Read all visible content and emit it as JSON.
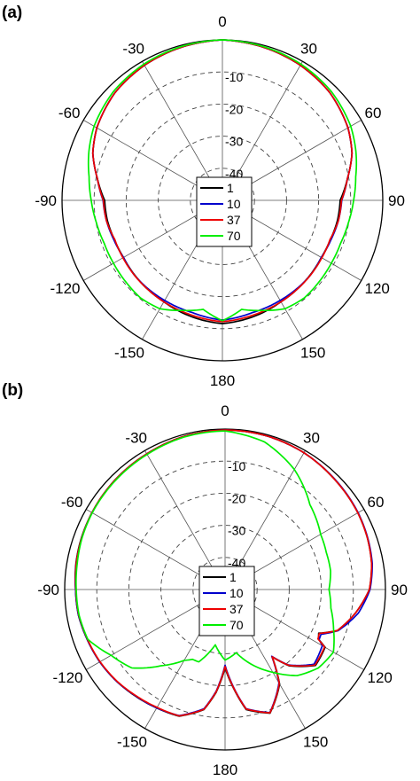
{
  "chart_data": [
    {
      "panel": "(a)",
      "type": "line",
      "coordinate_system": "polar",
      "theta_zero": "top",
      "theta_direction": "clockwise",
      "theta_ticks": [
        {
          "angle": 0,
          "label": "0"
        },
        {
          "angle": 30,
          "label": "30"
        },
        {
          "angle": 60,
          "label": "60"
        },
        {
          "angle": 90,
          "label": "90"
        },
        {
          "angle": 120,
          "label": "120"
        },
        {
          "angle": 150,
          "label": "150"
        },
        {
          "angle": 180,
          "label": "180"
        },
        {
          "angle": -150,
          "label": "-150"
        },
        {
          "angle": -120,
          "label": "-120"
        },
        {
          "angle": -90,
          "label": "-90"
        },
        {
          "angle": -60,
          "label": "-60"
        },
        {
          "angle": -30,
          "label": "-30"
        }
      ],
      "radial_ticks": [
        {
          "value": -10,
          "label": "-10"
        },
        {
          "value": -20,
          "label": "-20"
        },
        {
          "value": -30,
          "label": "-30"
        },
        {
          "value": -40,
          "label": "-40"
        }
      ],
      "rlim": [
        -50,
        0
      ],
      "grid": true,
      "legend_position": "center",
      "series": [
        {
          "name": "1",
          "color": "#000000",
          "angles": [
            -180,
            -165,
            -150,
            -140,
            -130,
            -120,
            -110,
            -100,
            -90,
            -80,
            -70,
            -60,
            -45,
            -30,
            -15,
            0,
            15,
            30,
            45,
            60,
            70,
            80,
            90,
            100,
            110,
            120,
            130,
            140,
            150,
            165,
            180
          ],
          "values": [
            -11.6,
            -12.5,
            -13.5,
            -13.8,
            -14.1,
            -14.4,
            -14.2,
            -13.6,
            -13.3,
            -10.4,
            -7,
            -4.8,
            -2.6,
            -1.4,
            -0.6,
            0,
            -0.6,
            -1.4,
            -2.6,
            -4.8,
            -7,
            -10.4,
            -13.3,
            -13.6,
            -14.2,
            -14.4,
            -14.1,
            -13.8,
            -13.5,
            -12.5,
            -11.6
          ]
        },
        {
          "name": "10",
          "color": "#0000cc",
          "angles": [
            -180,
            -165,
            -150,
            -140,
            -130,
            -120,
            -110,
            -100,
            -90,
            -80,
            -70,
            -60,
            -45,
            -30,
            -15,
            0,
            15,
            30,
            45,
            60,
            70,
            80,
            90,
            100,
            110,
            120,
            130,
            140,
            150,
            165,
            180
          ],
          "values": [
            -12.7,
            -13.8,
            -14,
            -14,
            -14,
            -14.4,
            -14,
            -13.3,
            -12.8,
            -10.4,
            -7,
            -4.8,
            -2.6,
            -1.4,
            -0.6,
            0,
            -0.6,
            -1.4,
            -2.6,
            -4.8,
            -7,
            -10.4,
            -12.8,
            -13.3,
            -14,
            -14.4,
            -14,
            -14,
            -14,
            -13.8,
            -12.7
          ]
        },
        {
          "name": "37",
          "color": "#ee0000",
          "angles": [
            -180,
            -165,
            -150,
            -140,
            -130,
            -120,
            -110,
            -100,
            -90,
            -80,
            -70,
            -60,
            -45,
            -30,
            -15,
            0,
            15,
            30,
            45,
            60,
            70,
            80,
            90,
            100,
            110,
            120,
            130,
            140,
            150,
            165,
            180
          ],
          "values": [
            -12.2,
            -13,
            -13.5,
            -13.8,
            -14,
            -14.2,
            -14.3,
            -13.3,
            -12.9,
            -10.4,
            -7,
            -4.8,
            -2.6,
            -1.4,
            -0.6,
            0,
            -0.6,
            -1.4,
            -2.6,
            -4.8,
            -7,
            -10.4,
            -12.9,
            -13.3,
            -14.3,
            -14.2,
            -14,
            -13.8,
            -13.5,
            -13,
            -12.2
          ]
        },
        {
          "name": "70",
          "color": "#00ee00",
          "angles": [
            -180,
            -170,
            -160,
            -150,
            -140,
            -130,
            -120,
            -110,
            -100,
            -90,
            -80,
            -70,
            -60,
            -45,
            -30,
            -15,
            0,
            15,
            30,
            45,
            60,
            70,
            80,
            90,
            100,
            110,
            120,
            130,
            140,
            150,
            160,
            170,
            180
          ],
          "values": [
            -12.5,
            -15.5,
            -13.5,
            -11,
            -10.3,
            -10.6,
            -10.8,
            -10.8,
            -10.1,
            -9.1,
            -7.8,
            -5.7,
            -3.8,
            -2,
            -1,
            -0.4,
            0,
            -0.4,
            -1,
            -2,
            -3.8,
            -5.7,
            -7.8,
            -9.1,
            -10.1,
            -10.8,
            -10.8,
            -10.6,
            -10.3,
            -11,
            -13.5,
            -15.5,
            -12.5
          ]
        }
      ]
    },
    {
      "panel": "(b)",
      "type": "line",
      "coordinate_system": "polar",
      "theta_zero": "top",
      "theta_direction": "clockwise",
      "theta_ticks": [
        {
          "angle": 0,
          "label": "0"
        },
        {
          "angle": 30,
          "label": "30"
        },
        {
          "angle": 60,
          "label": "60"
        },
        {
          "angle": 90,
          "label": "90"
        },
        {
          "angle": 120,
          "label": "120"
        },
        {
          "angle": 150,
          "label": "150"
        },
        {
          "angle": 180,
          "label": "180"
        },
        {
          "angle": -150,
          "label": "-150"
        },
        {
          "angle": -120,
          "label": "-120"
        },
        {
          "angle": -90,
          "label": "-90"
        },
        {
          "angle": -60,
          "label": "-60"
        },
        {
          "angle": -30,
          "label": "-30"
        }
      ],
      "radial_ticks": [
        {
          "value": -10,
          "label": "-10"
        },
        {
          "value": -20,
          "label": "-20"
        },
        {
          "value": -30,
          "label": "-30"
        },
        {
          "value": -40,
          "label": "-40"
        }
      ],
      "rlim": [
        -50,
        0
      ],
      "grid": true,
      "legend_position": "center",
      "series": [
        {
          "name": "1",
          "color": "#000000",
          "angles": [
            -180,
            -175,
            -170,
            -160,
            -150,
            -140,
            -130,
            -120,
            -110,
            -100,
            -90,
            -80,
            -70,
            -60,
            -45,
            -30,
            -15,
            0,
            15,
            30,
            45,
            60,
            70,
            80,
            90,
            100,
            110,
            115,
            118,
            120,
            130,
            140,
            145,
            150,
            160,
            170,
            175,
            180
          ],
          "values": [
            -25.6,
            -17.8,
            -12,
            -8,
            -7.4,
            -6.6,
            -5.7,
            -4.9,
            -4.3,
            -3.6,
            -3.4,
            -2.8,
            -2.4,
            -2.1,
            -1.6,
            -1.2,
            -0.6,
            -0.3,
            -0.4,
            -0.8,
            -1.6,
            -2.2,
            -2.8,
            -3.6,
            -5,
            -8.6,
            -12.7,
            -17.8,
            -17,
            -14,
            -13.2,
            -19,
            -24.4,
            -16,
            -9,
            -12,
            -19,
            -25.6
          ]
        },
        {
          "name": "10",
          "color": "#0000cc",
          "angles": [
            -180,
            -175,
            -170,
            -160,
            -150,
            -140,
            -130,
            -120,
            -110,
            -100,
            -90,
            -80,
            -70,
            -60,
            -45,
            -30,
            -15,
            0,
            15,
            30,
            45,
            60,
            70,
            80,
            90,
            100,
            110,
            115,
            118,
            120,
            130,
            140,
            145,
            150,
            160,
            170,
            175,
            180
          ],
          "values": [
            -26.4,
            -18.2,
            -12.3,
            -8.2,
            -7.4,
            -6.7,
            -5.7,
            -4.9,
            -4.3,
            -3.6,
            -3.4,
            -2.9,
            -2.5,
            -2.1,
            -1.6,
            -1.2,
            -0.6,
            -0.3,
            -0.4,
            -0.8,
            -1.5,
            -2.1,
            -2.7,
            -3.4,
            -4.8,
            -7.8,
            -12.5,
            -17,
            -16.8,
            -15,
            -13.8,
            -19.3,
            -24.6,
            -16.4,
            -9.2,
            -12.3,
            -19.4,
            -26.4
          ]
        },
        {
          "name": "37",
          "color": "#ee0000",
          "angles": [
            -180,
            -175,
            -170,
            -160,
            -150,
            -140,
            -130,
            -120,
            -110,
            -100,
            -90,
            -80,
            -70,
            -60,
            -45,
            -30,
            -15,
            0,
            15,
            30,
            45,
            60,
            70,
            80,
            90,
            100,
            110,
            115,
            118,
            120,
            130,
            140,
            145,
            150,
            160,
            170,
            175,
            180
          ],
          "values": [
            -26,
            -18,
            -12.1,
            -8.1,
            -7.6,
            -6.8,
            -5.8,
            -5,
            -4.4,
            -3.7,
            -3.5,
            -2.9,
            -2.5,
            -2.1,
            -1.6,
            -1.2,
            -0.6,
            -0.3,
            -0.4,
            -0.8,
            -1.6,
            -2.2,
            -2.8,
            -3.6,
            -5,
            -8.6,
            -12.7,
            -17.6,
            -17.2,
            -14.2,
            -13.4,
            -19.2,
            -24.4,
            -16.2,
            -9.1,
            -12.2,
            -19.2,
            -26
          ]
        },
        {
          "name": "70",
          "color": "#00ee00",
          "angles": [
            -180,
            -170,
            -160,
            -155,
            -150,
            -140,
            -130,
            -120,
            -110,
            -100,
            -90,
            -80,
            -70,
            -60,
            -45,
            -30,
            -15,
            0,
            15,
            30,
            45,
            60,
            70,
            80,
            90,
            100,
            110,
            120,
            130,
            140,
            150,
            160,
            170,
            180
          ],
          "values": [
            -28,
            -32.5,
            -26,
            -26,
            -24.5,
            -19,
            -12,
            -9,
            -4.5,
            -3.8,
            -3.6,
            -3.2,
            -2.6,
            -2.2,
            -1.8,
            -1.4,
            -0.8,
            -0.6,
            -2.4,
            -6.8,
            -12.6,
            -15.6,
            -16.4,
            -16.6,
            -17.6,
            -16.5,
            -14,
            -11,
            -12,
            -15,
            -20.2,
            -25,
            -30,
            -28
          ]
        }
      ]
    }
  ]
}
